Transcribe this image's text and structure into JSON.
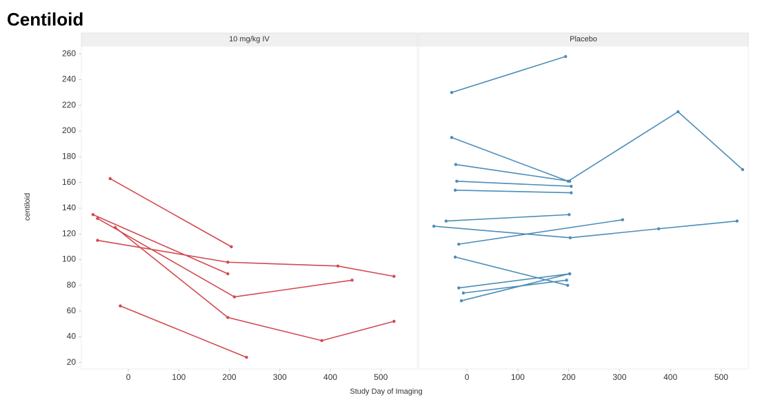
{
  "title": "Centiloid",
  "x_label": "Study Day of Imaging",
  "y_label": "centiloid",
  "chart_data": [
    {
      "type": "line",
      "panel_title": "10 mg/kg IV",
      "color": "#d4474f",
      "xlim": [
        -93,
        572
      ],
      "xticks": [
        0,
        100,
        200,
        300,
        400,
        500
      ],
      "ylim": [
        15,
        266
      ],
      "yticks": [
        20,
        40,
        60,
        80,
        100,
        120,
        140,
        160,
        180,
        200,
        220,
        240,
        260
      ],
      "series": [
        {
          "x": [
            -36,
            204
          ],
          "values": [
            163,
            110
          ]
        },
        {
          "x": [
            -70,
            197
          ],
          "values": [
            135,
            89
          ]
        },
        {
          "x": [
            -61,
            210,
            443
          ],
          "values": [
            132,
            71,
            84
          ]
        },
        {
          "x": [
            -26,
            197,
            383,
            526
          ],
          "values": [
            125,
            55,
            37,
            52
          ]
        },
        {
          "x": [
            -61,
            197,
            415,
            526
          ],
          "values": [
            115,
            98,
            95,
            87
          ]
        },
        {
          "x": [
            -16,
            234
          ],
          "values": [
            64,
            24
          ]
        }
      ]
    },
    {
      "type": "line",
      "panel_title": "Placebo",
      "color": "#4a8cb8",
      "xlim": [
        -95,
        553
      ],
      "xticks": [
        0,
        100,
        200,
        300,
        400,
        500
      ],
      "ylim": [
        15,
        266
      ],
      "yticks": [
        20,
        40,
        60,
        80,
        100,
        120,
        140,
        160,
        180,
        200,
        220,
        240,
        260
      ],
      "series": [
        {
          "x": [
            -30,
            194
          ],
          "values": [
            230,
            258
          ]
        },
        {
          "x": [
            -30,
            199,
            415,
            542
          ],
          "values": [
            195,
            161,
            215,
            170
          ]
        },
        {
          "x": [
            -22,
            202
          ],
          "values": [
            174,
            161
          ]
        },
        {
          "x": [
            -20,
            205
          ],
          "values": [
            161,
            157
          ]
        },
        {
          "x": [
            -23,
            205
          ],
          "values": [
            154,
            152
          ]
        },
        {
          "x": [
            -41,
            201
          ],
          "values": [
            130,
            135
          ]
        },
        {
          "x": [
            -65,
            203,
            377,
            531
          ],
          "values": [
            126,
            117,
            124,
            130
          ]
        },
        {
          "x": [
            -16,
            306
          ],
          "values": [
            112,
            131
          ]
        },
        {
          "x": [
            -23,
            198
          ],
          "values": [
            102,
            80
          ]
        },
        {
          "x": [
            -16,
            202
          ],
          "values": [
            78,
            89
          ]
        },
        {
          "x": [
            -7,
            196
          ],
          "values": [
            74,
            84
          ]
        },
        {
          "x": [
            -11,
            202
          ],
          "values": [
            68,
            89
          ]
        }
      ]
    }
  ]
}
